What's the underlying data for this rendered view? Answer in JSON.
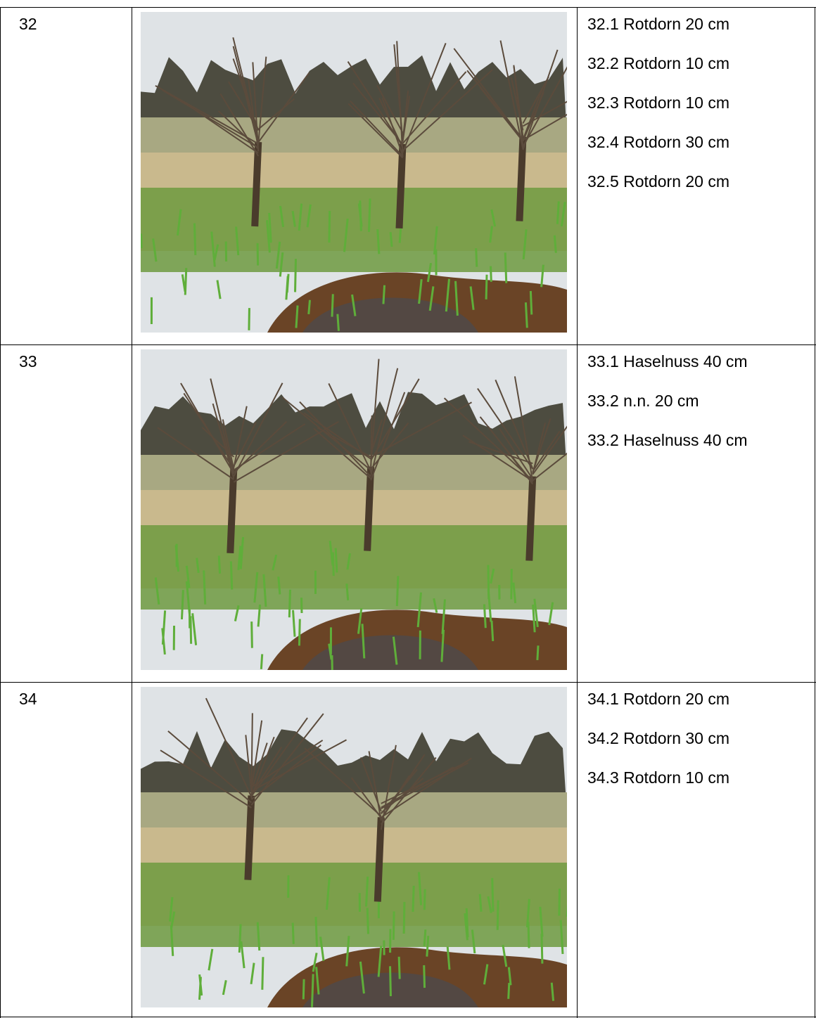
{
  "table": {
    "rows": [
      {
        "number": "32",
        "items": [
          "32.1 Rotdorn 20 cm",
          "32.2 Rotdorn 10 cm",
          "32.3 Rotdorn 10 cm",
          "32.4 Rotdorn 30 cm",
          "32.5 Rotdorn 20 cm"
        ]
      },
      {
        "number": "33",
        "items": [
          "33.1 Haselnuss 40 cm",
          "33.2 n.n. 20 cm",
          "33.2 Haselnuss 40 cm"
        ]
      },
      {
        "number": "34",
        "items": [
          "34.1 Rotdorn 20 cm",
          "34.2 Rotdorn 30 cm",
          "34.3 Rotdorn 10 cm"
        ]
      }
    ]
  }
}
